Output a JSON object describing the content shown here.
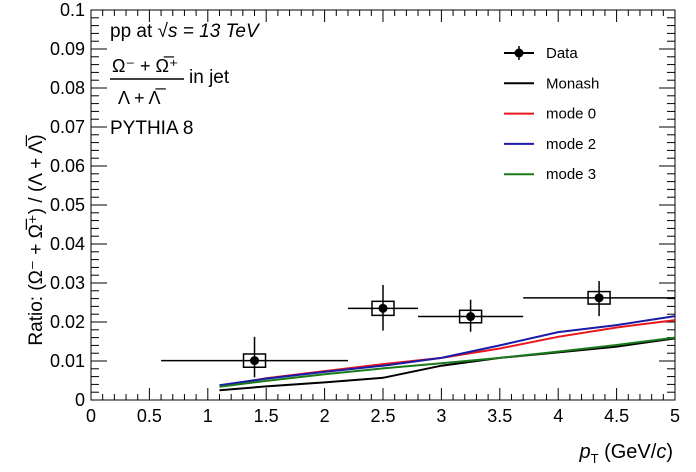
{
  "chart_data": {
    "type": "line",
    "xlim": [
      0,
      5
    ],
    "ylim": [
      0,
      0.1
    ],
    "x_ticks": [
      "0",
      "0.5",
      "1",
      "1.5",
      "2",
      "2.5",
      "3",
      "3.5",
      "4",
      "4.5",
      "5"
    ],
    "y_ticks": [
      "0",
      "0.01",
      "0.02",
      "0.03",
      "0.04",
      "0.05",
      "0.06",
      "0.07",
      "0.08",
      "0.09",
      "0.1"
    ],
    "xlabel": {
      "main": "p",
      "sub": "T",
      "unit": " (GeV/",
      "unit_var": "c",
      "unit_end": ")"
    },
    "ylabel": "Ratio: (Ω⁻ + Ω̅⁺) / (Λ + Λ̅)",
    "annotations": {
      "line1": "pp at",
      "line1_math": "√s = 13 TeV",
      "fraction_numerator": "Ω⁻ + Ω̅⁺",
      "fraction_denominator": "Λ + Λ̅",
      "fraction_suffix": "in jet",
      "line3": "PYTHIA 8"
    },
    "legend_position": "top-right",
    "data": {
      "name": "Data",
      "points": [
        {
          "x": 1.4,
          "y": 0.0101,
          "xlo": 0.6,
          "xhi": 2.2,
          "ylo": 0.0058,
          "yhi": 0.0162,
          "sys": 0.0017
        },
        {
          "x": 2.5,
          "y": 0.0235,
          "xlo": 2.2,
          "xhi": 2.8,
          "ylo": 0.0178,
          "yhi": 0.0295,
          "sys": 0.0018
        },
        {
          "x": 3.25,
          "y": 0.0214,
          "xlo": 2.8,
          "xhi": 3.7,
          "ylo": 0.0175,
          "yhi": 0.0257,
          "sys": 0.0016
        },
        {
          "x": 4.35,
          "y": 0.0262,
          "xlo": 3.7,
          "xhi": 5.0,
          "ylo": 0.0215,
          "yhi": 0.0305,
          "sys": 0.0016
        }
      ]
    },
    "series": [
      {
        "name": "Monash",
        "color": "#000000",
        "x": [
          1.1,
          1.5,
          2.0,
          2.5,
          3.0,
          3.5,
          4.0,
          4.5,
          5.0
        ],
        "y": [
          0.0025,
          0.0035,
          0.0045,
          0.0057,
          0.0088,
          0.0108,
          0.0122,
          0.0137,
          0.0158
        ]
      },
      {
        "name": "mode 0",
        "color": "#e8171c",
        "x": [
          1.1,
          1.5,
          2.0,
          2.5,
          3.0,
          3.5,
          4.0,
          4.5,
          5.0
        ],
        "y": [
          0.0035,
          0.0056,
          0.0074,
          0.0092,
          0.0108,
          0.0132,
          0.0162,
          0.0186,
          0.0205
        ]
      },
      {
        "name": "mode 2",
        "color": "#1a1aa6",
        "x": [
          1.1,
          1.5,
          2.0,
          2.5,
          3.0,
          3.5,
          4.0,
          4.5,
          5.0
        ],
        "y": [
          0.0038,
          0.0055,
          0.0072,
          0.0088,
          0.0108,
          0.014,
          0.0174,
          0.0192,
          0.0215
        ]
      },
      {
        "name": "mode 3",
        "color": "#1a7a1a",
        "x": [
          1.1,
          1.5,
          2.0,
          2.5,
          3.0,
          3.5,
          4.0,
          4.5,
          5.0
        ],
        "y": [
          0.0034,
          0.0049,
          0.0066,
          0.0081,
          0.0094,
          0.0108,
          0.0124,
          0.0141,
          0.016
        ]
      }
    ]
  }
}
